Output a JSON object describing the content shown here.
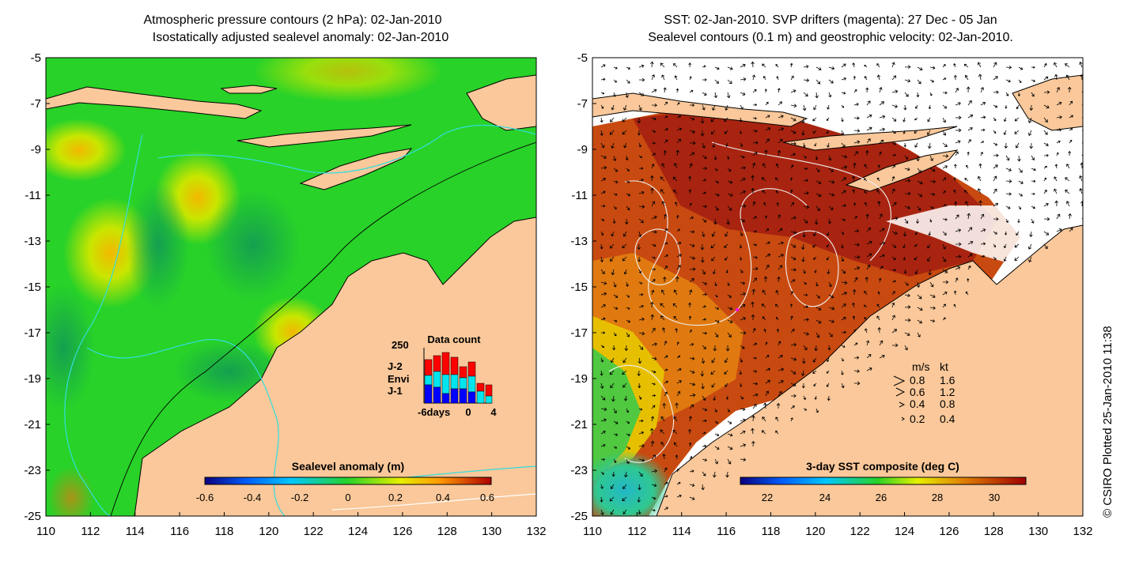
{
  "left_panel": {
    "title_line1": "Atmospheric pressure contours (2 hPa): 02-Jan-2010",
    "title_line2": "Isostatically adjusted sealevel anomaly: 02-Jan-2010",
    "colorbar_label": "Sealevel anomaly (m)",
    "colorbar_ticks": [
      "-0.6",
      "-0.4",
      "-0.2",
      "0",
      "0.2",
      "0.4",
      "0.6"
    ],
    "inset": {
      "title": "Data count",
      "ymax_label": "250",
      "series": [
        {
          "name": "J-2",
          "color": "#ff0000"
        },
        {
          "name": "Envi",
          "color": "#00e5ee"
        },
        {
          "name": "J-1",
          "color": "#0000ff"
        }
      ],
      "x_start_label": "-6days",
      "x_mid_label": "0",
      "x_end_label": "4"
    }
  },
  "right_panel": {
    "title_line1": "SST: 02-Jan-2010. SVP drifters (magenta): 27 Dec - 05 Jan",
    "title_line2": "Sealevel contours (0.1 m) and geostrophic velocity: 02-Jan-2010.",
    "colorbar_label": "3-day SST composite (deg C)",
    "colorbar_ticks": [
      "22",
      "24",
      "26",
      "28",
      "30"
    ],
    "velocity_legend": {
      "header_ms": "m/s",
      "header_kt": "kt",
      "rows": [
        {
          "ms": "0.8",
          "kt": "1.6"
        },
        {
          "ms": "0.6",
          "kt": "1.2"
        },
        {
          "ms": "0.4",
          "kt": "0.8"
        },
        {
          "ms": "0.2",
          "kt": "0.4"
        }
      ]
    }
  },
  "axes": {
    "y_ticks": [
      "-5",
      "-7",
      "-9",
      "-11",
      "-13",
      "-15",
      "-17",
      "-19",
      "-21",
      "-23",
      "-25"
    ],
    "x_ticks": [
      "110",
      "112",
      "114",
      "116",
      "118",
      "120",
      "122",
      "124",
      "126",
      "128",
      "130",
      "132"
    ]
  },
  "credit": "© CSIRO Plotted 25-Jan-2010 11:38",
  "colors": {
    "land": "#fac89a",
    "ocean_anomaly": "#28d228",
    "ocean_sst_warm": "#b82810",
    "contour_cyan": "#33dddd"
  }
}
